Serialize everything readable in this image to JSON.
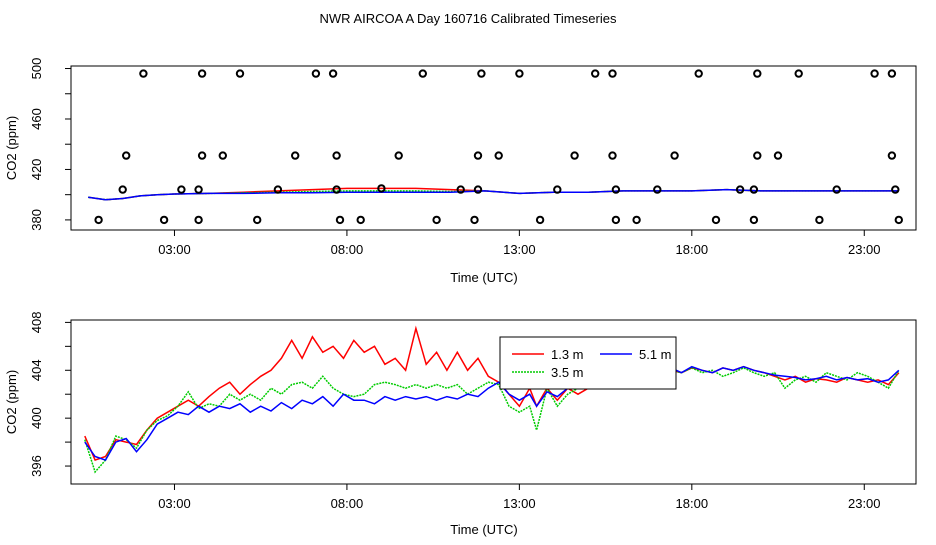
{
  "title": "NWR AIRCOA A  Day 160716  Calibrated Timeseries",
  "chart_data": [
    {
      "type": "scatter+line",
      "xlabel": "Time (UTC)",
      "ylabel": "CO2 (ppm)",
      "xlim": [
        0.0,
        24.5
      ],
      "ylim": [
        372,
        502
      ],
      "xticks": [
        3,
        8,
        13,
        18,
        23
      ],
      "xtick_labels": [
        "03:00",
        "08:00",
        "13:00",
        "18:00",
        "23:00"
      ],
      "yticks": [
        380,
        420,
        460,
        500
      ],
      "ytick_labels": [
        "380",
        "420",
        "460",
        "500"
      ],
      "points": {
        "name": "calibration standards",
        "x": [
          2.1,
          3.8,
          4.9,
          7.1,
          7.6,
          10.2,
          11.9,
          13.0,
          15.2,
          15.7,
          18.2,
          19.9,
          21.1,
          23.3,
          23.8,
          1.5,
          3.2,
          3.7,
          6.0,
          7.7,
          9.0,
          11.3,
          11.8,
          14.1,
          15.8,
          17.0,
          19.4,
          19.8,
          22.2,
          23.9,
          1.6,
          3.8,
          4.4,
          6.5,
          7.7,
          9.5,
          11.8,
          12.4,
          14.6,
          15.7,
          17.5,
          19.9,
          20.5,
          23.8,
          0.8,
          2.7,
          3.7,
          5.4,
          7.8,
          8.4,
          10.6,
          11.7,
          13.6,
          15.8,
          16.4,
          18.7,
          19.8,
          21.7,
          24.0
        ],
        "y": [
          496,
          496,
          496,
          496,
          496,
          496,
          496,
          496,
          496,
          496,
          496,
          496,
          496,
          496,
          496,
          404,
          404,
          404,
          404,
          404,
          405,
          404,
          404,
          404,
          404,
          404,
          404,
          404,
          404,
          404,
          431,
          431,
          431,
          431,
          431,
          431,
          431,
          431,
          431,
          431,
          431,
          431,
          431,
          431,
          380,
          380,
          380,
          380,
          380,
          380,
          380,
          380,
          380,
          380,
          380,
          380,
          380,
          380,
          380
        ]
      },
      "series": [
        {
          "name": "1.3 m",
          "color": "#ff0000",
          "x": [
            0.5,
            1.0,
            1.5,
            2.0,
            2.5,
            3.0,
            4.0,
            5.0,
            6.0,
            7.0,
            8.0,
            9.0,
            10.0,
            11.0,
            12.0,
            13.0,
            14.0,
            15.0,
            16.0,
            17.0,
            18.0,
            19.0,
            20.0,
            21.0,
            22.0,
            23.0,
            24.0
          ],
          "y": [
            398,
            396,
            397,
            399,
            400,
            400.5,
            401,
            402,
            403,
            404,
            405,
            405,
            405,
            404,
            403,
            401,
            402,
            402,
            403,
            403,
            403,
            404,
            403,
            403,
            403,
            403,
            403
          ]
        },
        {
          "name": "3.5 m",
          "color": "#00cc00",
          "x": [
            0.5,
            1.0,
            1.5,
            2.0,
            2.5,
            3.0,
            4.0,
            5.0,
            6.0,
            7.0,
            8.0,
            9.0,
            10.0,
            11.0,
            12.0,
            13.0,
            14.0,
            15.0,
            16.0,
            17.0,
            18.0,
            19.0,
            20.0,
            21.0,
            22.0,
            23.0,
            24.0
          ],
          "y": [
            398,
            396,
            397,
            399,
            400,
            400.5,
            401,
            401.5,
            402,
            402.5,
            403,
            403,
            403,
            402.5,
            403,
            401,
            402,
            402,
            403,
            403,
            403,
            404,
            403,
            403,
            403,
            403,
            403
          ]
        },
        {
          "name": "5.1 m",
          "color": "#0000ff",
          "x": [
            0.5,
            1.0,
            1.5,
            2.0,
            2.5,
            3.0,
            4.0,
            5.0,
            6.0,
            7.0,
            8.0,
            9.0,
            10.0,
            11.0,
            12.0,
            13.0,
            14.0,
            15.0,
            16.0,
            17.0,
            18.0,
            19.0,
            20.0,
            21.0,
            22.0,
            23.0,
            24.0
          ],
          "y": [
            398,
            396,
            397,
            399,
            400,
            400.5,
            401,
            401,
            401.5,
            401.5,
            402,
            402,
            402,
            402,
            403,
            401,
            402,
            402,
            403,
            403,
            403,
            404,
            403,
            403,
            403,
            403,
            403
          ]
        }
      ]
    },
    {
      "type": "line",
      "xlabel": "Time (UTC)",
      "ylabel": "CO2 (ppm)",
      "xlim": [
        0.0,
        24.5
      ],
      "ylim": [
        394.5,
        408.2
      ],
      "xticks": [
        3,
        8,
        13,
        18,
        23
      ],
      "xtick_labels": [
        "03:00",
        "08:00",
        "13:00",
        "18:00",
        "23:00"
      ],
      "yticks": [
        396,
        400,
        404,
        408
      ],
      "ytick_labels": [
        "396",
        "400",
        "404",
        "408"
      ],
      "legend": {
        "position": "top-center",
        "entries": [
          "1.3 m",
          "3.5 m",
          "5.1 m"
        ]
      },
      "series": [
        {
          "name": "1.3 m",
          "color": "#ff0000",
          "x": [
            0.4,
            0.7,
            1.0,
            1.3,
            1.6,
            1.9,
            2.2,
            2.5,
            2.8,
            3.1,
            3.4,
            3.7,
            4.0,
            4.3,
            4.6,
            4.9,
            5.2,
            5.5,
            5.8,
            6.1,
            6.4,
            6.7,
            7.0,
            7.3,
            7.6,
            7.9,
            8.2,
            8.5,
            8.8,
            9.1,
            9.4,
            9.7,
            10.0,
            10.3,
            10.6,
            10.9,
            11.2,
            11.5,
            11.8,
            12.1,
            12.4,
            12.7,
            13.0,
            13.3,
            13.5,
            13.8,
            14.1,
            14.4,
            14.7,
            15.0,
            15.3,
            15.6,
            15.9,
            16.2,
            16.5,
            16.8,
            17.1,
            17.4,
            17.7,
            18.0,
            18.3,
            18.6,
            18.9,
            19.2,
            19.5,
            19.8,
            20.1,
            20.4,
            20.7,
            21.0,
            21.3,
            21.6,
            21.9,
            22.2,
            22.5,
            22.8,
            23.1,
            23.4,
            23.7,
            24.0
          ],
          "y": [
            398.5,
            396.5,
            396.8,
            398.2,
            398.0,
            397.8,
            399.0,
            400.0,
            400.5,
            401.0,
            401.5,
            401.0,
            401.8,
            402.5,
            403.0,
            402.0,
            402.8,
            403.5,
            404.0,
            405.0,
            406.5,
            405.0,
            406.8,
            405.5,
            406.0,
            405.0,
            406.5,
            405.5,
            406.0,
            404.5,
            405.0,
            404.0,
            407.5,
            404.5,
            405.5,
            404.0,
            405.5,
            404.0,
            405.0,
            403.5,
            403.0,
            402.0,
            401.0,
            402.5,
            401.0,
            402.5,
            401.5,
            402.5,
            402.0,
            402.5,
            403.0,
            403.5,
            403.0,
            402.8,
            403.2,
            403.5,
            403.8,
            404.0,
            403.8,
            404.2,
            404.0,
            403.8,
            404.2,
            404.0,
            404.3,
            404.0,
            403.8,
            403.5,
            403.2,
            403.5,
            403.0,
            403.3,
            403.2,
            403.0,
            403.4,
            403.2,
            403.0,
            403.2,
            402.8,
            403.8
          ]
        },
        {
          "name": "3.5 m",
          "color": "#00cc00",
          "x": [
            0.4,
            0.7,
            1.0,
            1.3,
            1.6,
            1.9,
            2.2,
            2.5,
            2.8,
            3.1,
            3.4,
            3.7,
            4.0,
            4.3,
            4.6,
            4.9,
            5.2,
            5.5,
            5.8,
            6.1,
            6.4,
            6.7,
            7.0,
            7.3,
            7.6,
            7.9,
            8.2,
            8.5,
            8.8,
            9.1,
            9.4,
            9.7,
            10.0,
            10.3,
            10.6,
            10.9,
            11.2,
            11.5,
            11.8,
            12.1,
            12.4,
            12.7,
            13.0,
            13.3,
            13.5,
            13.8,
            14.1,
            14.4,
            14.7,
            15.0,
            15.3,
            15.6,
            15.9,
            16.2,
            16.5,
            16.8,
            17.1,
            17.4,
            17.7,
            18.0,
            18.3,
            18.6,
            18.9,
            19.2,
            19.5,
            19.8,
            20.1,
            20.4,
            20.7,
            21.0,
            21.3,
            21.6,
            21.9,
            22.2,
            22.5,
            22.8,
            23.1,
            23.4,
            23.7,
            24.0
          ],
          "y": [
            398.2,
            395.5,
            396.5,
            398.5,
            398.2,
            397.5,
            399.0,
            399.8,
            400.2,
            401.0,
            402.2,
            400.8,
            401.2,
            401.0,
            402.0,
            401.5,
            402.0,
            401.5,
            402.5,
            402.0,
            402.8,
            403.0,
            402.5,
            403.5,
            402.5,
            402.0,
            401.8,
            402.0,
            402.8,
            403.0,
            402.8,
            402.5,
            402.8,
            402.5,
            402.8,
            402.5,
            402.8,
            402.0,
            402.5,
            403.0,
            402.8,
            401.0,
            400.5,
            401.0,
            399.0,
            402.5,
            401.0,
            402.0,
            402.5,
            403.0,
            403.2,
            402.5,
            403.0,
            403.5,
            403.2,
            403.8,
            403.5,
            404.0,
            403.8,
            404.2,
            403.8,
            404.0,
            403.5,
            403.8,
            404.2,
            403.8,
            403.5,
            403.8,
            402.5,
            403.2,
            403.5,
            403.0,
            403.8,
            403.5,
            403.2,
            403.8,
            403.5,
            403.0,
            402.5,
            404.0
          ]
        },
        {
          "name": "5.1 m",
          "color": "#0000ff",
          "x": [
            0.4,
            0.7,
            1.0,
            1.3,
            1.6,
            1.9,
            2.2,
            2.5,
            2.8,
            3.1,
            3.4,
            3.7,
            4.0,
            4.3,
            4.6,
            4.9,
            5.2,
            5.5,
            5.8,
            6.1,
            6.4,
            6.7,
            7.0,
            7.3,
            7.6,
            7.9,
            8.2,
            8.5,
            8.8,
            9.1,
            9.4,
            9.7,
            10.0,
            10.3,
            10.6,
            10.9,
            11.2,
            11.5,
            11.8,
            12.1,
            12.4,
            12.7,
            13.0,
            13.3,
            13.5,
            13.8,
            14.1,
            14.4,
            14.7,
            15.0,
            15.3,
            15.6,
            15.9,
            16.2,
            16.5,
            16.8,
            17.1,
            17.4,
            17.7,
            18.0,
            18.3,
            18.6,
            18.9,
            19.2,
            19.5,
            19.8,
            20.1,
            20.4,
            20.7,
            21.0,
            21.3,
            21.6,
            21.9,
            22.2,
            22.5,
            22.8,
            23.1,
            23.4,
            23.7,
            24.0
          ],
          "y": [
            398.0,
            396.8,
            396.5,
            398.0,
            398.3,
            397.2,
            398.2,
            399.5,
            400.0,
            400.5,
            400.3,
            401.0,
            400.5,
            401.0,
            400.8,
            401.2,
            400.5,
            401.0,
            400.6,
            401.3,
            400.8,
            401.5,
            401.2,
            401.8,
            401.0,
            402.0,
            401.5,
            401.5,
            401.2,
            401.8,
            401.5,
            401.8,
            401.6,
            401.8,
            401.5,
            401.8,
            401.6,
            402.0,
            401.8,
            402.5,
            403.0,
            402.0,
            401.5,
            402.0,
            401.0,
            402.2,
            401.8,
            402.5,
            402.5,
            403.0,
            402.8,
            403.2,
            403.0,
            403.5,
            403.5,
            403.8,
            403.8,
            404.2,
            403.8,
            404.3,
            404.0,
            403.8,
            404.2,
            404.0,
            404.3,
            404.0,
            403.8,
            403.6,
            403.5,
            403.4,
            403.2,
            403.3,
            403.5,
            403.2,
            403.4,
            403.2,
            403.3,
            403.0,
            403.2,
            404.0
          ]
        }
      ]
    }
  ]
}
